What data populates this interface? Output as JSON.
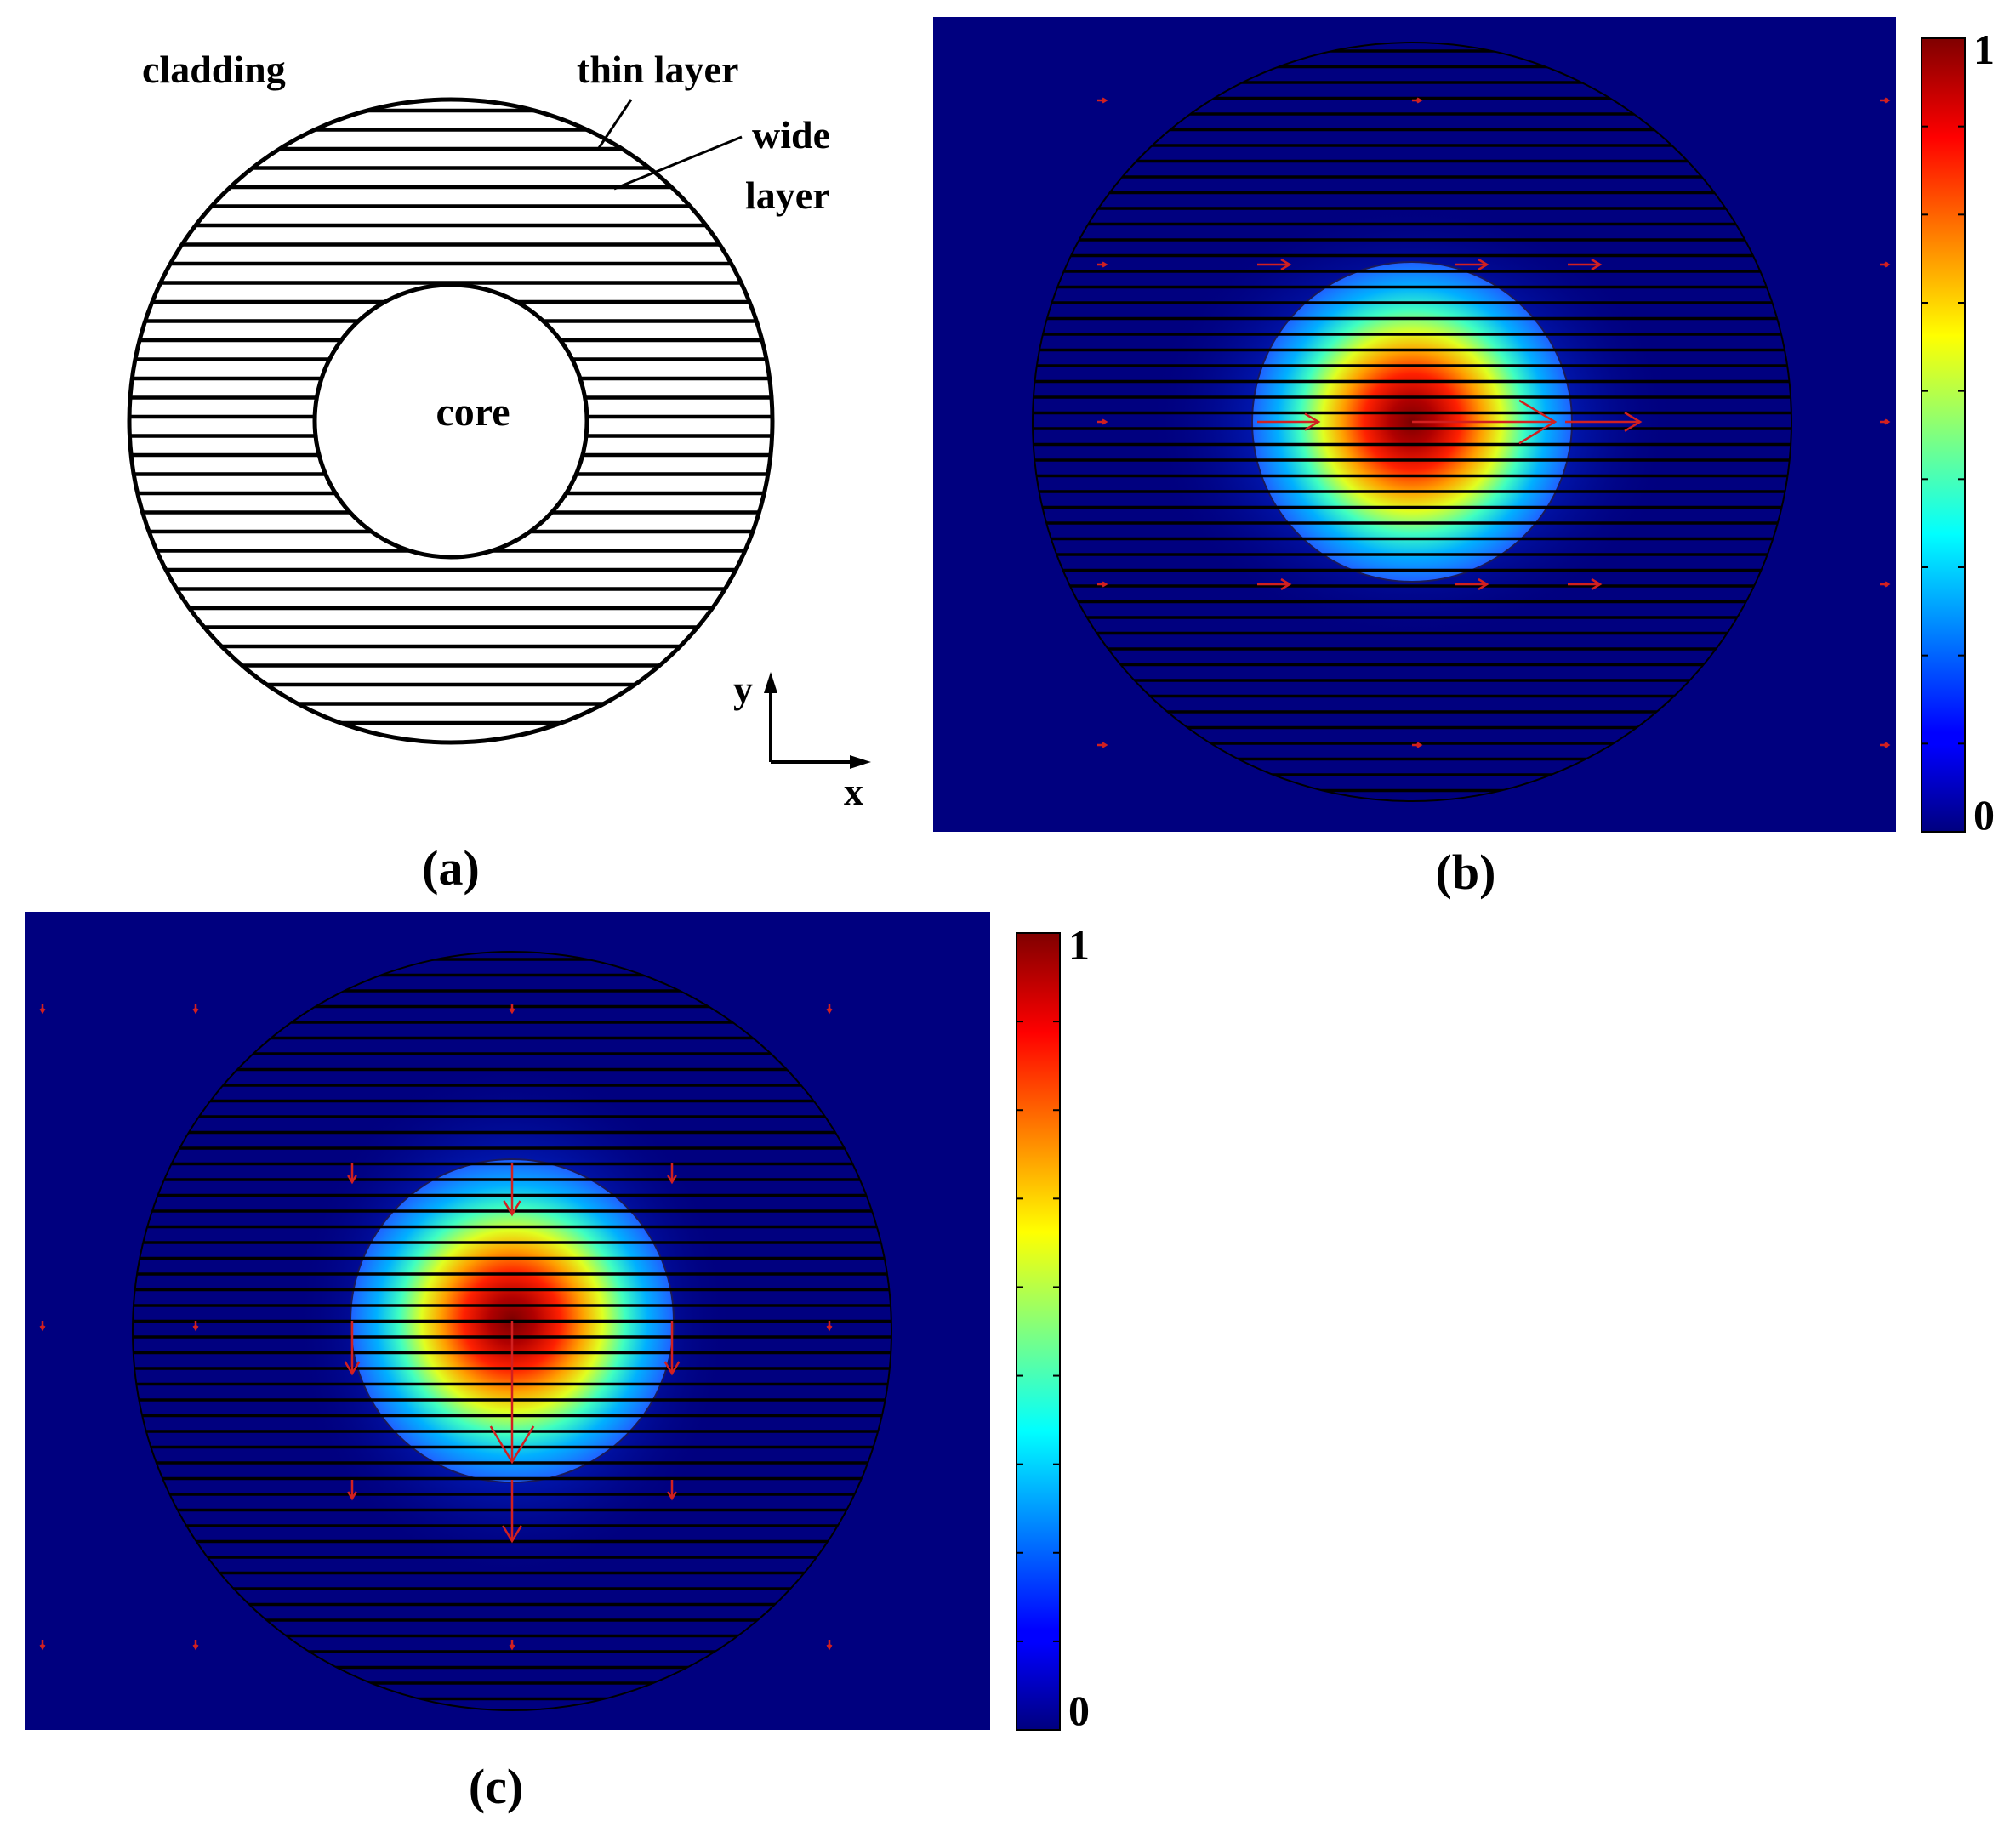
{
  "panels": {
    "a": {
      "caption": "(a)",
      "labels": {
        "cladding": "cladding",
        "thin_layer": "thin layer",
        "wide_layer_line1": "wide",
        "wide_layer_line2": "layer",
        "core": "core",
        "axis_y": "y",
        "axis_x": "x"
      }
    },
    "b": {
      "caption": "(b)",
      "colorbar": {
        "max": "1",
        "min": "0"
      },
      "polarization": "x"
    },
    "c": {
      "caption": "(c)",
      "colorbar": {
        "max": "1",
        "min": "0"
      },
      "polarization": "y"
    }
  },
  "colors": {
    "background_field": "#00007f",
    "jet_low": "#00008f",
    "jet_high": "#800000",
    "arrow": "#d22020",
    "line": "#000000"
  }
}
